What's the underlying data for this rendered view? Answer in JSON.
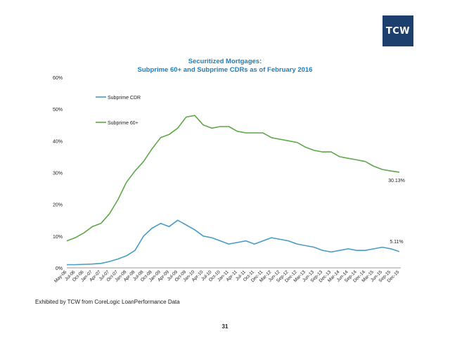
{
  "logo_text": "TCW",
  "source": "Exhibited by TCW from CoreLogic LoanPerformance Data",
  "page_number": "31",
  "colors": {
    "cdr": "#4a9cc4",
    "sixty": "#5fa84a",
    "title": "#1f7fbf",
    "logo_bg": "#1d3f6e"
  },
  "chart_data": {
    "type": "line",
    "title": "Securitized Mortgages:",
    "subtitle": "Subprime 60+ and Subprime CDRs as of February 2016",
    "ylim": [
      0,
      60
    ],
    "yticks": [
      "0%",
      "10%",
      "20%",
      "30%",
      "40%",
      "50%",
      "60%"
    ],
    "legend_position": "upper-left",
    "x_tick_labels": [
      "May-06",
      "Jul-06",
      "Oct-06",
      "Jan-07",
      "Apr-07",
      "Jul-07",
      "Oct-07",
      "Jan-08",
      "Apr-08",
      "Jul-08",
      "Oct-08",
      "Jan-09",
      "Apr-09",
      "Jul-09",
      "Oct-09",
      "Jan-10",
      "Apr-10",
      "Jul-10",
      "Oct-10",
      "Jan-11",
      "Apr-11",
      "Jul-11",
      "Oct-11",
      "Dec-11",
      "Mar-12",
      "Jun-12",
      "Sep-12",
      "Dec-12",
      "Mar-13",
      "Jun-13",
      "Sep-13",
      "Dec-13",
      "Mar-14",
      "Jun-14",
      "Sep-14",
      "Dec-14",
      "Mar-15",
      "Jun-15",
      "Sep-15",
      "Dec-15"
    ],
    "series": [
      {
        "name": "Subprime CDR",
        "end_label": "5.11%",
        "values": [
          1.0,
          1.0,
          1.1,
          1.2,
          1.4,
          2.0,
          2.8,
          3.8,
          5.5,
          10.0,
          12.5,
          14.0,
          13.0,
          15.0,
          13.5,
          12.0,
          10.0,
          9.5,
          8.5,
          7.5,
          8.0,
          8.5,
          7.5,
          8.5,
          9.5,
          9.0,
          8.5,
          7.5,
          7.0,
          6.5,
          5.5,
          5.0,
          5.5,
          6.0,
          5.5,
          5.5,
          6.0,
          6.5,
          6.0,
          5.11
        ]
      },
      {
        "name": "Subprime 60+",
        "end_label": "30.13%",
        "values": [
          8.5,
          9.5,
          11.0,
          13.0,
          14.0,
          17.0,
          21.5,
          27.0,
          30.5,
          33.5,
          37.5,
          41.0,
          42.0,
          44.0,
          47.5,
          48.0,
          45.0,
          44.0,
          44.5,
          44.5,
          43.0,
          42.5,
          42.5,
          42.5,
          41.0,
          40.5,
          40.0,
          39.5,
          38.0,
          37.0,
          36.5,
          36.5,
          35.0,
          34.5,
          34.0,
          33.5,
          32.0,
          31.0,
          30.5,
          30.13
        ]
      }
    ]
  }
}
